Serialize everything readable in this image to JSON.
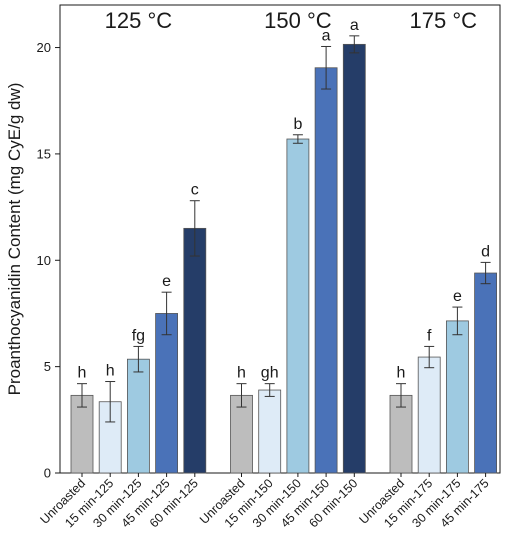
{
  "chart_data": {
    "type": "bar",
    "ylabel": "Proanthocyanidin Content (mg CyE/g dw)",
    "ylim": [
      0,
      22
    ],
    "yticks": [
      0,
      5,
      10,
      15,
      20
    ],
    "groups": [
      {
        "title": "125 °C",
        "bars": [
          {
            "category": "Unroasted",
            "value": 3.65,
            "error": 0.55,
            "letter": "h",
            "color": "#bdbdbd"
          },
          {
            "category": "15 min-125",
            "value": 3.35,
            "error": 0.95,
            "letter": "h",
            "color": "#deebf7"
          },
          {
            "category": "30 min-125",
            "value": 5.35,
            "error": 0.6,
            "letter": "fg",
            "color": "#9ecae1"
          },
          {
            "category": "45 min-125",
            "value": 7.5,
            "error": 1.0,
            "letter": "e",
            "color": "#4a72b8"
          },
          {
            "category": "60 min-125",
            "value": 11.5,
            "error": 1.3,
            "letter": "c",
            "color": "#253d68"
          }
        ]
      },
      {
        "title": "150 °C",
        "bars": [
          {
            "category": "Unroasted",
            "value": 3.65,
            "error": 0.55,
            "letter": "h",
            "color": "#bdbdbd"
          },
          {
            "category": "15 min-150",
            "value": 3.9,
            "error": 0.3,
            "letter": "gh",
            "color": "#deebf7"
          },
          {
            "category": "30 min-150",
            "value": 15.7,
            "error": 0.2,
            "letter": "b",
            "color": "#9ecae1"
          },
          {
            "category": "45 min-150",
            "value": 19.05,
            "error": 1.0,
            "letter": "a",
            "color": "#4a72b8"
          },
          {
            "category": "60 min-150",
            "value": 20.15,
            "error": 0.4,
            "letter": "a",
            "color": "#253d68"
          }
        ]
      },
      {
        "title": "175 °C",
        "bars": [
          {
            "category": "Unroasted",
            "value": 3.65,
            "error": 0.55,
            "letter": "h",
            "color": "#bdbdbd"
          },
          {
            "category": "15 min-175",
            "value": 5.45,
            "error": 0.5,
            "letter": "f",
            "color": "#deebf7"
          },
          {
            "category": "30 min-175",
            "value": 7.15,
            "error": 0.65,
            "letter": "e",
            "color": "#9ecae1"
          },
          {
            "category": "45 min-175",
            "value": 9.4,
            "error": 0.5,
            "letter": "d",
            "color": "#4a72b8"
          }
        ]
      }
    ]
  }
}
